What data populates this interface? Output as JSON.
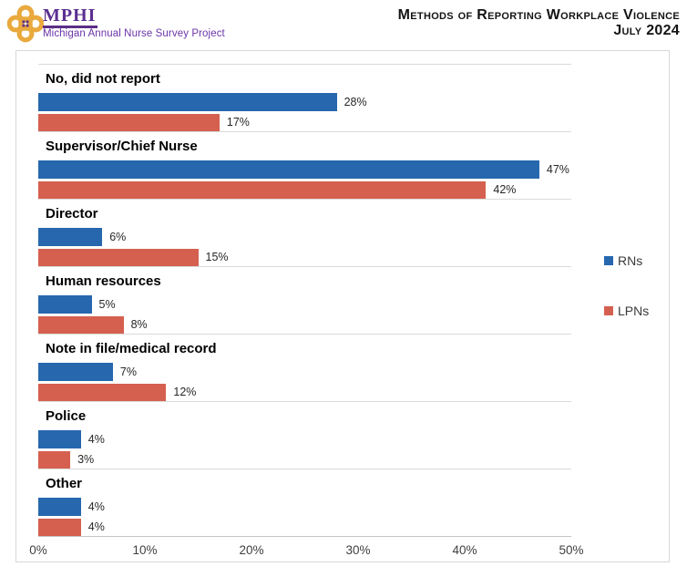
{
  "header": {
    "logo_acronym": "MPHI",
    "logo_subtitle": "Michigan Annual Nurse Survey Project",
    "title_line1": "Methods of Reporting Workplace Violence",
    "title_line2": "July 2024"
  },
  "chart_data": {
    "type": "bar",
    "orientation": "horizontal",
    "title": "Methods of Reporting Workplace Violence",
    "subtitle": "July 2024",
    "categories": [
      "No, did not report",
      "Supervisor/Chief Nurse",
      "Director",
      "Human resources",
      "Note in file/medical record",
      "Police",
      "Other"
    ],
    "series": [
      {
        "name": "RNs",
        "color": "#2667AE",
        "values": [
          28,
          47,
          6,
          5,
          7,
          4,
          4
        ]
      },
      {
        "name": "LPNs",
        "color": "#D5604F",
        "values": [
          17,
          42,
          15,
          8,
          12,
          3,
          4
        ]
      }
    ],
    "value_suffix": "%",
    "xlim": [
      0,
      50
    ],
    "x_ticks": [
      "0%",
      "10%",
      "20%",
      "30%",
      "40%",
      "50%"
    ],
    "legend_position": "right",
    "grid": "horizontal category separators only",
    "colors": {
      "rn_blue": "#2667AE",
      "lpn_red": "#D5604F",
      "logo_gold": "#E9A93D",
      "logo_purple": "#5C2D87",
      "separator_gray": "#DADADA"
    }
  }
}
